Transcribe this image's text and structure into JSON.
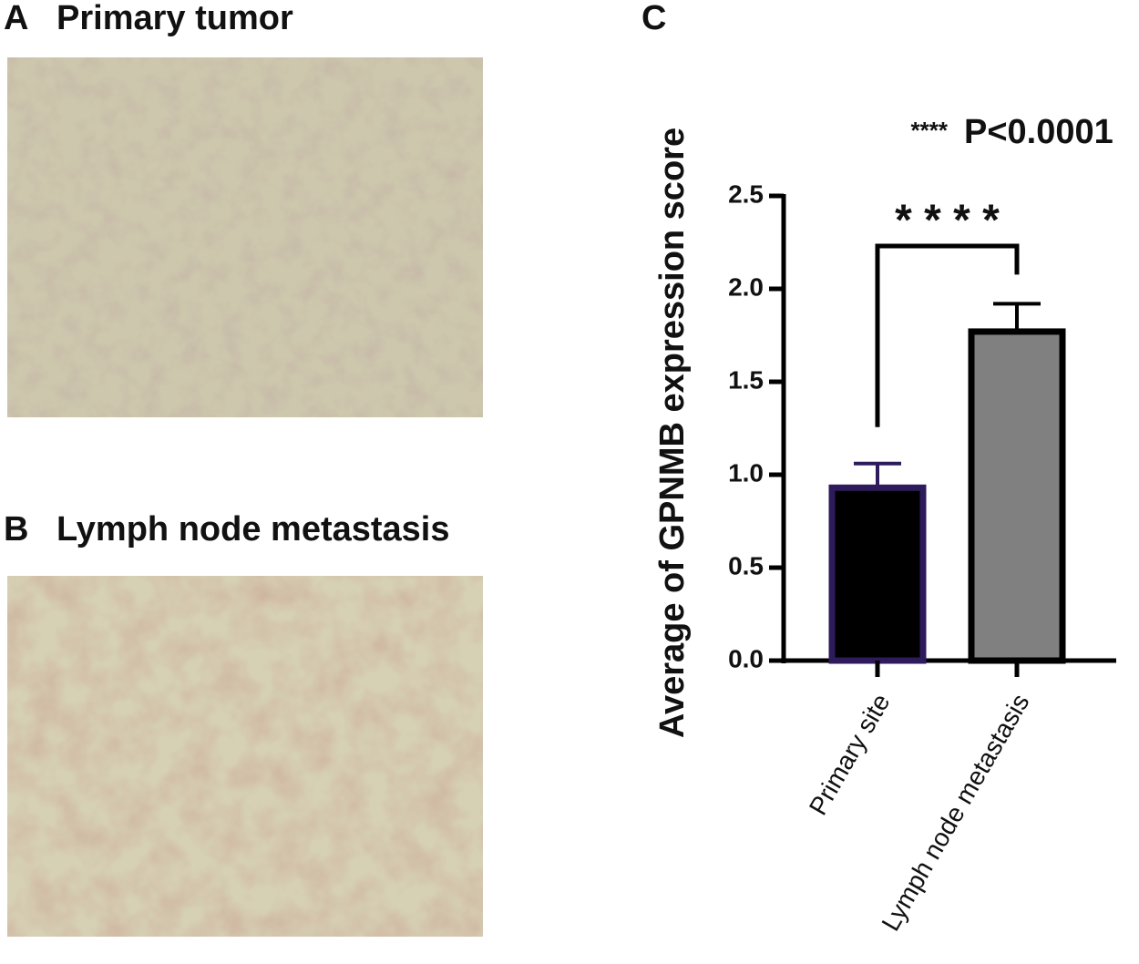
{
  "panels": [
    {
      "letter": "A",
      "title": "Primary tumor"
    },
    {
      "letter": "B",
      "title": "Lymph node metastasis"
    }
  ],
  "chart_data": {
    "type": "bar",
    "panel": "C",
    "ylabel": "Average of GPNMB expression score",
    "annotation_stars": "****",
    "annotation_text": "P<0.0001",
    "significance": "* * * *",
    "categories": [
      "Primary site",
      "Lymph node metastasis"
    ],
    "values": [
      0.93,
      1.77
    ],
    "errors": [
      0.13,
      0.15
    ],
    "colors": [
      "#000000",
      "#808080"
    ],
    "edgecolors": [
      "#2e1b5b",
      "#000000"
    ],
    "ylim": [
      0,
      2.5
    ],
    "yticks": [
      {
        "value": 0,
        "label": "0.0"
      },
      0.5,
      {
        "value": 1,
        "label": "1.0"
      },
      1.5,
      {
        "value": 2,
        "label": "2.0"
      },
      2.5
    ]
  }
}
